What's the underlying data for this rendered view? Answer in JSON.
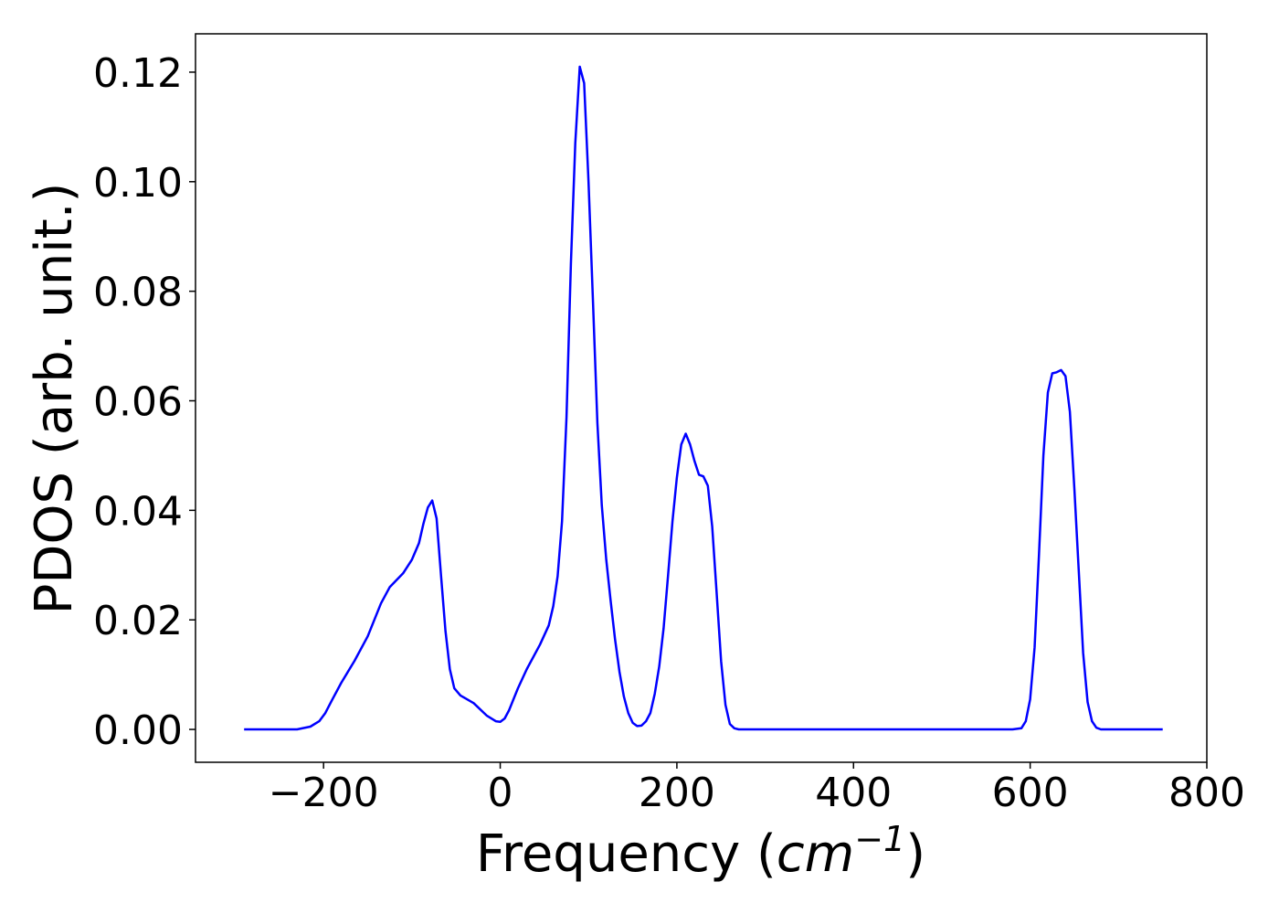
{
  "chart_data": {
    "type": "line",
    "title": "",
    "xlabel": "Frequency (cm⁻¹)",
    "xlabel_parts": {
      "prefix": "Frequency (",
      "unit_base": "cm",
      "unit_exp": "−1",
      "suffix": ")"
    },
    "ylabel": "PDOS (arb. unit.)",
    "xlim": [
      -345,
      800
    ],
    "ylim": [
      -0.006,
      0.127
    ],
    "xticks": [
      -200,
      0,
      200,
      400,
      600,
      800
    ],
    "xtick_labels": [
      "−200",
      "0",
      "200",
      "400",
      "600",
      "800"
    ],
    "yticks": [
      0.0,
      0.02,
      0.04,
      0.06,
      0.08,
      0.1,
      0.12
    ],
    "ytick_labels": [
      "0.00",
      "0.02",
      "0.04",
      "0.06",
      "0.08",
      "0.10",
      "0.12"
    ],
    "grid": false,
    "legend": "none",
    "series": [
      {
        "color": "#0000ff",
        "x": [
          -290,
          -230,
          -215,
          -205,
          -198,
          -190,
          -180,
          -165,
          -150,
          -135,
          -125,
          -110,
          -100,
          -92,
          -87,
          -82,
          -77,
          -72,
          -67,
          -62,
          -57,
          -52,
          -45,
          -30,
          -15,
          -5,
          0,
          5,
          10,
          20,
          30,
          45,
          55,
          60,
          65,
          70,
          75,
          80,
          85,
          90,
          95,
          100,
          105,
          110,
          115,
          120,
          125,
          130,
          135,
          140,
          145,
          150,
          155,
          160,
          165,
          170,
          175,
          180,
          185,
          190,
          195,
          200,
          205,
          210,
          215,
          220,
          225,
          230,
          235,
          240,
          245,
          250,
          255,
          260,
          265,
          270,
          275,
          280,
          290,
          580,
          590,
          595,
          600,
          605,
          610,
          615,
          620,
          625,
          630,
          635,
          640,
          645,
          650,
          655,
          660,
          665,
          670,
          675,
          680,
          685,
          690,
          750
        ],
        "y": [
          0.0,
          0.0,
          0.0005,
          0.0015,
          0.003,
          0.0055,
          0.0085,
          0.0125,
          0.017,
          0.023,
          0.026,
          0.0285,
          0.031,
          0.034,
          0.0375,
          0.0405,
          0.0418,
          0.0385,
          0.028,
          0.018,
          0.011,
          0.0075,
          0.0062,
          0.0048,
          0.0025,
          0.0015,
          0.0014,
          0.002,
          0.0035,
          0.0075,
          0.011,
          0.0155,
          0.019,
          0.0225,
          0.028,
          0.038,
          0.057,
          0.085,
          0.107,
          0.121,
          0.118,
          0.1,
          0.078,
          0.056,
          0.041,
          0.031,
          0.0235,
          0.0165,
          0.0105,
          0.006,
          0.003,
          0.0012,
          0.0006,
          0.0007,
          0.0015,
          0.003,
          0.0065,
          0.0115,
          0.0185,
          0.028,
          0.038,
          0.046,
          0.052,
          0.054,
          0.052,
          0.049,
          0.0465,
          0.0462,
          0.0445,
          0.037,
          0.025,
          0.0125,
          0.0045,
          0.001,
          0.0002,
          0.0,
          0.0,
          0.0,
          0.0,
          0.0,
          0.0002,
          0.0015,
          0.0055,
          0.015,
          0.032,
          0.05,
          0.0615,
          0.065,
          0.0652,
          0.0656,
          0.0645,
          0.058,
          0.044,
          0.029,
          0.014,
          0.005,
          0.0015,
          0.0003,
          0.0,
          0.0,
          0.0,
          0.0
        ]
      }
    ]
  }
}
